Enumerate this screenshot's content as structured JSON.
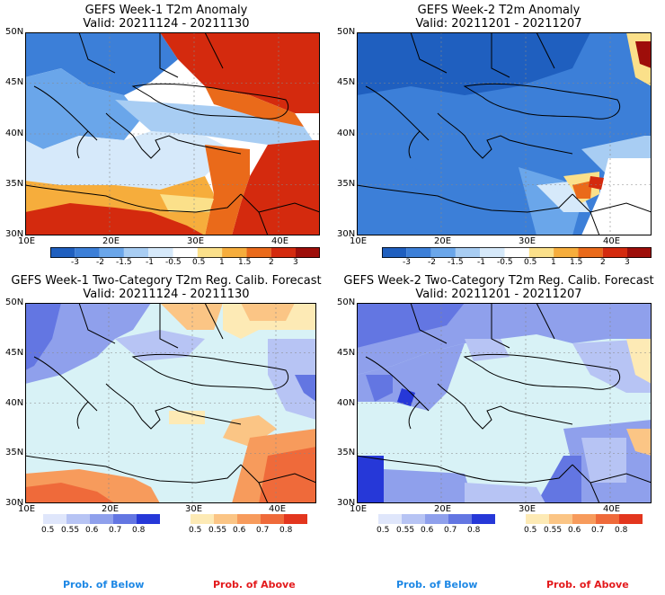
{
  "panels": [
    {
      "id": "p1",
      "title": "GEFS Week-1 T2m Anomaly",
      "valid": "Valid: 20211124 - 20211130",
      "lat_labels": [
        "50N",
        "45N",
        "40N",
        "35N",
        "30N"
      ],
      "lon_labels": [
        "10E",
        "20E",
        "30E",
        "40E"
      ],
      "colorbar_labels": [
        "-3",
        "-2",
        "-1.5",
        "-1",
        "-0.5",
        "0.5",
        "1",
        "1.5",
        "2",
        "3"
      ]
    },
    {
      "id": "p2",
      "title": "GEFS Week-2 T2m Anomaly",
      "valid": "Valid: 20211201 - 20211207",
      "lat_labels": [
        "50N",
        "45N",
        "40N",
        "35N",
        "30N"
      ],
      "lon_labels": [
        "10E",
        "20E",
        "30E",
        "40E"
      ],
      "colorbar_labels": [
        "-3",
        "-2",
        "-1.5",
        "-1",
        "-0.5",
        "0.5",
        "1",
        "1.5",
        "2",
        "3"
      ]
    },
    {
      "id": "p3",
      "title": "GEFS Week-1 Two-Category T2m Reg. Calib. Forecast",
      "valid": "Valid: 20211124 - 20211130",
      "lat_labels": [
        "50N",
        "45N",
        "40N",
        "35N",
        "30N"
      ],
      "lon_labels": [
        "10E",
        "20E",
        "30E",
        "40E"
      ],
      "below_labels": [
        "0.5",
        "0.55",
        "0.6",
        "0.7",
        "0.8"
      ],
      "above_labels": [
        "0.5",
        "0.55",
        "0.6",
        "0.7",
        "0.8"
      ]
    },
    {
      "id": "p4",
      "title": "GEFS Week-2 Two-Category T2m Reg. Calib. Forecast",
      "valid": "Valid: 20211201 - 20211207",
      "lat_labels": [
        "50N",
        "45N",
        "40N",
        "35N",
        "30N"
      ],
      "lon_labels": [
        "10E",
        "20E",
        "30E",
        "40E"
      ],
      "below_labels": [
        "0.5",
        "0.55",
        "0.6",
        "0.7",
        "0.8"
      ],
      "above_labels": [
        "0.5",
        "0.55",
        "0.6",
        "0.7",
        "0.8"
      ]
    }
  ],
  "footer": {
    "left_below": "Prob. of Below",
    "left_above": "Prob. of Above",
    "right_below": "Prob. of Below",
    "right_above": "Prob. of Above"
  },
  "colors": {
    "anomaly_scale": [
      "#1f5fbf",
      "#3c7fd8",
      "#6aa6ea",
      "#a8cdf3",
      "#d6e9fa",
      "#ffffff",
      "#fbe08a",
      "#f6ad3c",
      "#ea6a1a",
      "#d42a0e",
      "#9e0e0a"
    ],
    "below_scale": [
      "#dfe6fb",
      "#b7c4f4",
      "#8fa0ec",
      "#6376e2",
      "#2638d8"
    ],
    "above_scale": [
      "#fdeab5",
      "#fbc585",
      "#f79b5c",
      "#ef6a3a",
      "#e3361e"
    ],
    "near_normal": "#d8f2f6",
    "below_text": "#1e88e5",
    "above_text": "#e31a1c"
  }
}
